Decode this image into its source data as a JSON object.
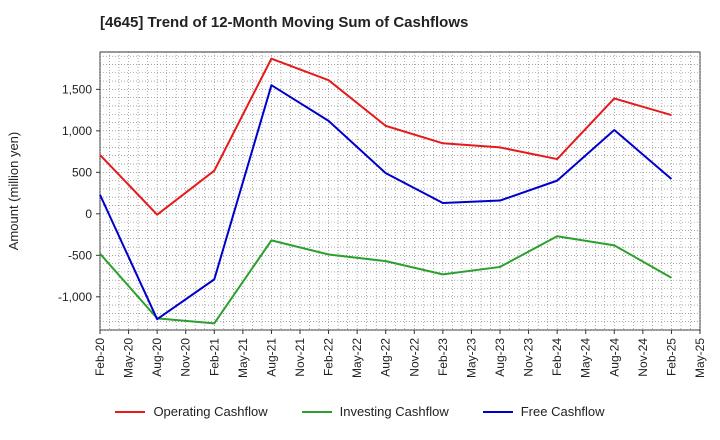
{
  "chart_data": {
    "type": "line",
    "title": "[4645]  Trend of 12-Month Moving Sum of Cashflows",
    "ylabel": "Amount (million yen)",
    "xlabel": "",
    "categories": [
      "Feb-20",
      "May-20",
      "Aug-20",
      "Nov-20",
      "Feb-21",
      "May-21",
      "Aug-21",
      "Nov-21",
      "Feb-22",
      "May-22",
      "Aug-22",
      "Nov-22",
      "Feb-23",
      "May-23",
      "Aug-23",
      "Nov-23",
      "Feb-24",
      "May-24",
      "Aug-24",
      "Nov-24",
      "Feb-25",
      "May-25"
    ],
    "ylim": [
      -1400,
      1950
    ],
    "yticks": [
      1500,
      1000,
      500,
      0,
      -500,
      -1000
    ],
    "ytick_labels": [
      "1,500",
      "1,000",
      "500",
      "0",
      "-500",
      "-1,000"
    ],
    "grid": true,
    "legend_position": "bottom",
    "series": [
      {
        "name": "Operating Cashflow",
        "color": "#e41a1c",
        "points": [
          [
            "Feb-20",
            710
          ],
          [
            "Aug-20",
            -10
          ],
          [
            "Feb-21",
            520
          ],
          [
            "Aug-21",
            1870
          ],
          [
            "Feb-22",
            1610
          ],
          [
            "Aug-22",
            1060
          ],
          [
            "Feb-23",
            850
          ],
          [
            "Aug-23",
            800
          ],
          [
            "Feb-24",
            660
          ],
          [
            "Aug-24",
            1390
          ],
          [
            "Feb-25",
            1190
          ]
        ]
      },
      {
        "name": "Investing Cashflow",
        "color": "#2ca02c",
        "points": [
          [
            "Feb-20",
            -480
          ],
          [
            "Aug-20",
            -1260
          ],
          [
            "Feb-21",
            -1320
          ],
          [
            "Aug-21",
            -320
          ],
          [
            "Feb-22",
            -490
          ],
          [
            "Aug-22",
            -570
          ],
          [
            "Feb-23",
            -730
          ],
          [
            "Aug-23",
            -640
          ],
          [
            "Feb-24",
            -270
          ],
          [
            "Aug-24",
            -380
          ],
          [
            "Feb-25",
            -770
          ]
        ]
      },
      {
        "name": "Free Cashflow",
        "color": "#0000cc",
        "points": [
          [
            "Feb-20",
            230
          ],
          [
            "Aug-20",
            -1270
          ],
          [
            "Feb-21",
            -790
          ],
          [
            "Aug-21",
            1550
          ],
          [
            "Feb-22",
            1120
          ],
          [
            "Aug-22",
            490
          ],
          [
            "Feb-23",
            130
          ],
          [
            "Aug-23",
            160
          ],
          [
            "Feb-24",
            400
          ],
          [
            "Aug-24",
            1010
          ],
          [
            "Feb-25",
            420
          ]
        ]
      }
    ]
  }
}
